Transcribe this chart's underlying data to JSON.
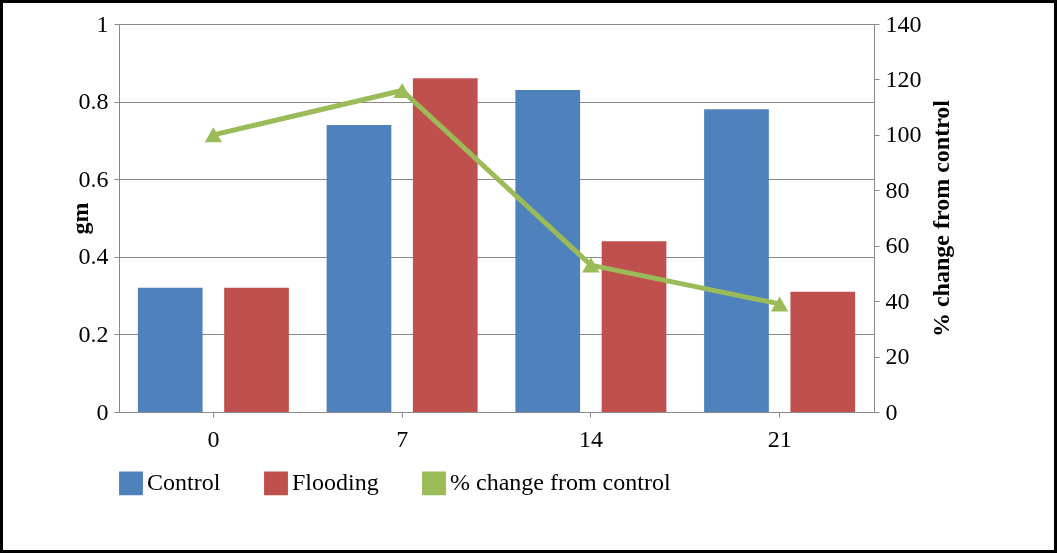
{
  "chart_data": {
    "type": "bar",
    "categories": [
      "0",
      "7",
      "14",
      "21"
    ],
    "series": [
      {
        "name": "Control",
        "color": "#4f81bd",
        "values": [
          0.32,
          0.74,
          0.83,
          0.78
        ]
      },
      {
        "name": "Flooding",
        "color": "#c0504d",
        "values": [
          0.32,
          0.86,
          0.44,
          0.31
        ]
      },
      {
        "name": "% change from control",
        "type": "line",
        "axis": "y2",
        "color": "#9bbb59",
        "marker": "triangle",
        "values": [
          100,
          116,
          53,
          39
        ]
      }
    ],
    "ylabel": "gm",
    "y2label": "% change from control",
    "ylim": [
      0,
      1
    ],
    "yticks": [
      0,
      0.2,
      0.4,
      0.6,
      0.8,
      1
    ],
    "y2lim": [
      0,
      140
    ],
    "y2ticks": [
      0,
      20,
      40,
      60,
      80,
      100,
      120,
      140
    ],
    "grid": "y",
    "legend": "bottom"
  }
}
